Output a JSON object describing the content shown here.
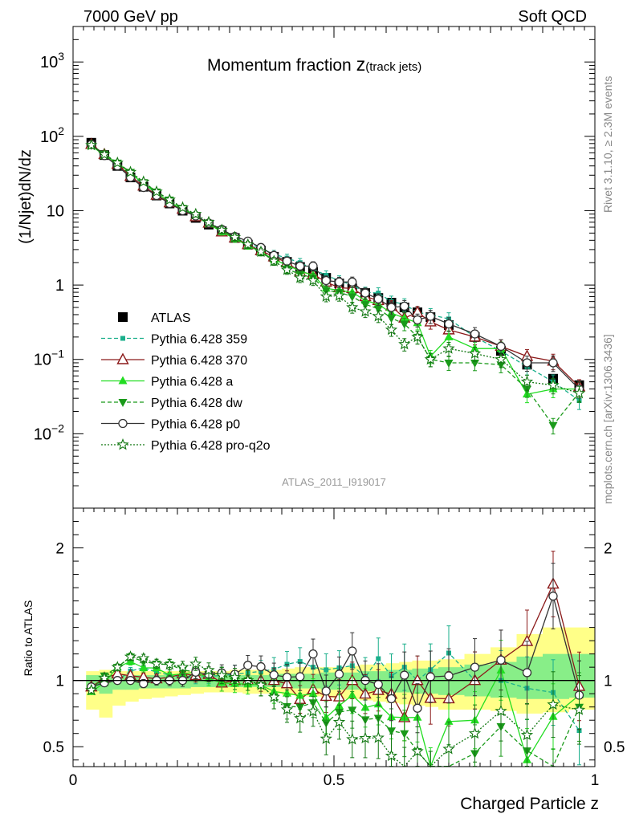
{
  "header": {
    "left": "7000 GeV pp",
    "right": "Soft QCD"
  },
  "side_labels": {
    "rivet": "Rivet 3.1.10, ≥ 2.3M events",
    "mcplots": "mcplots.cern.ch [arXiv:1306.3436]"
  },
  "chart_data": [
    {
      "type": "scatter",
      "title_main": "Momentum fraction",
      "title_var": "z",
      "title_sub": "(track jets)",
      "ylabel": "(1/Njet)dN/dz",
      "xlabel": "Charged Particle z",
      "analysis_id": "ATLAS_2011_I919017",
      "yscale": "log",
      "xlim": [
        0,
        1
      ],
      "ylim": [
        0.001,
        3000
      ],
      "y_ticks": [
        {
          "v": 1000,
          "base": "10",
          "exp": "3"
        },
        {
          "v": 100,
          "base": "10",
          "exp": "2"
        },
        {
          "v": 10,
          "base": "10",
          "exp": ""
        },
        {
          "v": 1,
          "base": "1",
          "exp": ""
        },
        {
          "v": 0.1,
          "base": "10",
          "exp": "−1"
        },
        {
          "v": 0.01,
          "base": "10",
          "exp": "−2"
        }
      ],
      "x_ticks": [
        {
          "v": 0,
          "label": "0"
        },
        {
          "v": 0.5,
          "label": "0.5"
        },
        {
          "v": 1,
          "label": "1"
        }
      ],
      "x": [
        0.035,
        0.06,
        0.085,
        0.11,
        0.135,
        0.16,
        0.185,
        0.21,
        0.235,
        0.26,
        0.285,
        0.31,
        0.335,
        0.36,
        0.385,
        0.41,
        0.435,
        0.46,
        0.485,
        0.51,
        0.535,
        0.56,
        0.585,
        0.61,
        0.635,
        0.66,
        0.685,
        0.72,
        0.77,
        0.82,
        0.87,
        0.92,
        0.97
      ],
      "series": [
        {
          "name": "ATLAS",
          "color": "#000000",
          "marker": "square-filled",
          "line": "none",
          "values": [
            82,
            56,
            40,
            28,
            21,
            16,
            12.5,
            10,
            8,
            6.5,
            5.3,
            4.3,
            3.5,
            2.9,
            2.4,
            2.05,
            1.75,
            1.5,
            1.25,
            1.05,
            0.9,
            0.78,
            0.67,
            0.58,
            0.5,
            0.43,
            0.37,
            0.29,
            0.2,
            0.13,
            0.085,
            0.055,
            0.045
          ]
        },
        {
          "name": "Pythia 6.428 359",
          "color": "#1aaf8b",
          "marker": "square-small",
          "line": "dashed",
          "values": [
            78,
            55,
            40,
            30,
            23,
            17,
            13,
            10.2,
            8.2,
            6.7,
            5.5,
            4.5,
            3.7,
            3.1,
            2.6,
            2.3,
            2.0,
            1.65,
            1.35,
            1.15,
            1.0,
            0.8,
            0.78,
            0.6,
            0.55,
            0.43,
            0.4,
            0.35,
            0.2,
            0.13,
            0.08,
            0.05,
            0.028
          ]
        },
        {
          "name": "Pythia 6.428 370",
          "color": "#8b1a1a",
          "marker": "triangle-open",
          "line": "solid",
          "values": [
            78,
            57,
            42,
            29,
            21.5,
            16.2,
            12.8,
            10.5,
            8.3,
            6.8,
            5.2,
            4.3,
            3.5,
            2.9,
            2.4,
            2.0,
            1.5,
            1.4,
            1.1,
            0.92,
            0.9,
            0.7,
            0.62,
            0.52,
            0.36,
            0.43,
            0.32,
            0.25,
            0.2,
            0.15,
            0.11,
            0.095,
            0.043
          ]
        },
        {
          "name": "Pythia 6.428 a",
          "color": "#22dd22",
          "marker": "triangle-filled",
          "line": "solid",
          "values": [
            75,
            55,
            44,
            32,
            23,
            17.5,
            13,
            10.5,
            8.5,
            6.6,
            5.2,
            4.2,
            3.4,
            2.8,
            2.2,
            1.85,
            1.55,
            1.35,
            0.9,
            0.85,
            0.8,
            0.62,
            0.55,
            0.42,
            0.36,
            0.31,
            0.11,
            0.2,
            0.14,
            0.14,
            0.034,
            0.04,
            0.04
          ]
        },
        {
          "name": "Pythia 6.428 dw",
          "color": "#1a9a1a",
          "marker": "triangle-down-filled",
          "line": "dashed",
          "values": [
            76,
            58,
            44,
            33,
            24,
            18,
            14,
            10.8,
            8.5,
            6.8,
            5.5,
            4.3,
            3.5,
            2.8,
            2.1,
            1.65,
            1.4,
            1.25,
            0.85,
            0.8,
            0.7,
            0.55,
            0.48,
            0.36,
            0.3,
            0.2,
            0.1,
            0.09,
            0.09,
            0.085,
            0.04,
            0.013,
            0.036
          ]
        },
        {
          "name": "Pythia 6.428 p0",
          "color": "#333333",
          "marker": "circle-open",
          "line": "solid",
          "values": [
            78,
            55,
            40,
            28,
            20.5,
            16,
            12.5,
            10,
            8.5,
            6.8,
            5.6,
            4.5,
            3.9,
            3.2,
            2.5,
            2.1,
            1.8,
            1.8,
            1.15,
            1.1,
            1.1,
            0.78,
            0.65,
            0.5,
            0.52,
            0.34,
            0.38,
            0.3,
            0.22,
            0.15,
            0.09,
            0.09,
            0.04
          ]
        },
        {
          "name": "Pythia 6.428 pro-q2o",
          "color": "#117711",
          "marker": "star-open",
          "line": "dotted",
          "values": [
            76,
            57,
            44,
            33,
            24.5,
            18,
            14,
            11,
            9,
            7,
            5.5,
            4.4,
            3.5,
            2.8,
            2.1,
            1.6,
            1.25,
            1.15,
            0.7,
            0.72,
            0.5,
            0.44,
            0.38,
            0.25,
            0.16,
            0.2,
            0.1,
            0.14,
            0.12,
            0.1,
            0.05,
            0.045,
            0.035
          ]
        }
      ]
    },
    {
      "type": "line",
      "ylabel": "Ratio to ATLAS",
      "xlabel": "Charged Particle z",
      "xlim": [
        0,
        1
      ],
      "ylim": [
        0.35,
        2.3
      ],
      "y_ticks": [
        {
          "v": 0.5,
          "label": "0.5"
        },
        {
          "v": 1,
          "label": "1"
        },
        {
          "v": 2,
          "label": "2"
        }
      ],
      "x_ticks": [
        {
          "v": 0,
          "label": "0"
        },
        {
          "v": 0.5,
          "label": "0.5"
        },
        {
          "v": 1,
          "label": "1"
        }
      ],
      "reference_line": 1,
      "band_edges": [
        0.025,
        0.05,
        0.075,
        0.1,
        0.125,
        0.15,
        0.175,
        0.2,
        0.225,
        0.25,
        0.275,
        0.3,
        0.325,
        0.35,
        0.375,
        0.4,
        0.425,
        0.45,
        0.475,
        0.5,
        0.525,
        0.55,
        0.575,
        0.6,
        0.625,
        0.65,
        0.675,
        0.7,
        0.75,
        0.8,
        0.85,
        0.9,
        0.95,
        1.0
      ],
      "band_yellow": [
        [
          0.78,
          1.07
        ],
        [
          0.72,
          1.08
        ],
        [
          0.81,
          1.07
        ],
        [
          0.84,
          1.07
        ],
        [
          0.86,
          1.07
        ],
        [
          0.87,
          1.07
        ],
        [
          0.88,
          1.07
        ],
        [
          0.89,
          1.07
        ],
        [
          0.9,
          1.07
        ],
        [
          0.91,
          1.07
        ],
        [
          0.91,
          1.07
        ],
        [
          0.91,
          1.08
        ],
        [
          0.9,
          1.08
        ],
        [
          0.9,
          1.08
        ],
        [
          0.9,
          1.08
        ],
        [
          0.89,
          1.09
        ],
        [
          0.88,
          1.1
        ],
        [
          0.88,
          1.1
        ],
        [
          0.87,
          1.1
        ],
        [
          0.86,
          1.1
        ],
        [
          0.86,
          1.11
        ],
        [
          0.85,
          1.12
        ],
        [
          0.84,
          1.12
        ],
        [
          0.83,
          1.13
        ],
        [
          0.82,
          1.14
        ],
        [
          0.81,
          1.15
        ],
        [
          0.8,
          1.15
        ],
        [
          0.78,
          1.16
        ],
        [
          0.78,
          1.2
        ],
        [
          0.77,
          1.25
        ],
        [
          0.75,
          1.35
        ],
        [
          0.76,
          1.4
        ],
        [
          0.78,
          1.4
        ]
      ],
      "band_green": [
        [
          0.92,
          1.04
        ],
        [
          0.9,
          1.04
        ],
        [
          0.93,
          1.04
        ],
        [
          0.93,
          1.04
        ],
        [
          0.94,
          1.04
        ],
        [
          0.94,
          1.04
        ],
        [
          0.94,
          1.04
        ],
        [
          0.94,
          1.04
        ],
        [
          0.95,
          1.04
        ],
        [
          0.95,
          1.04
        ],
        [
          0.95,
          1.04
        ],
        [
          0.95,
          1.04
        ],
        [
          0.95,
          1.04
        ],
        [
          0.95,
          1.04
        ],
        [
          0.95,
          1.05
        ],
        [
          0.94,
          1.05
        ],
        [
          0.94,
          1.05
        ],
        [
          0.94,
          1.05
        ],
        [
          0.93,
          1.06
        ],
        [
          0.93,
          1.06
        ],
        [
          0.93,
          1.06
        ],
        [
          0.92,
          1.07
        ],
        [
          0.92,
          1.07
        ],
        [
          0.91,
          1.08
        ],
        [
          0.91,
          1.08
        ],
        [
          0.9,
          1.09
        ],
        [
          0.9,
          1.09
        ],
        [
          0.89,
          1.1
        ],
        [
          0.88,
          1.12
        ],
        [
          0.87,
          1.14
        ],
        [
          0.86,
          1.18
        ],
        [
          0.86,
          1.2
        ],
        [
          0.87,
          1.2
        ]
      ]
    }
  ]
}
